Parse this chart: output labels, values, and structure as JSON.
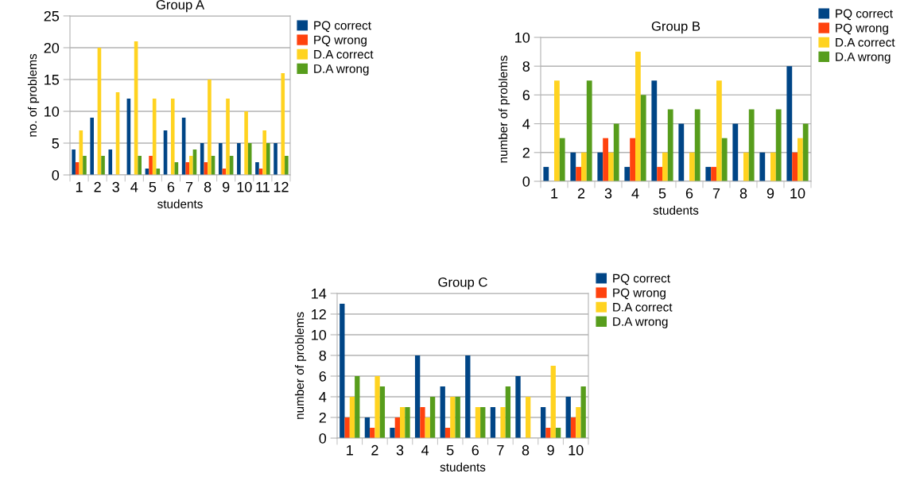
{
  "chart_data": [
    {
      "type": "bar",
      "title": "Group A",
      "xlabel": "students",
      "ylabel": "no. of problems",
      "categories": [
        "1",
        "2",
        "3",
        "4",
        "5",
        "6",
        "7",
        "8",
        "9",
        "10",
        "11",
        "12"
      ],
      "ylim": [
        0,
        25
      ],
      "yticks": [
        0,
        5,
        10,
        15,
        20,
        25
      ],
      "grid": "y",
      "legend": "top right",
      "series": [
        {
          "name": "PQ correct",
          "color": "#004586",
          "values": [
            4,
            9,
            4,
            12,
            1,
            7,
            9,
            5,
            5,
            5,
            2,
            5
          ]
        },
        {
          "name": "PQ wrong",
          "color": "#ff420e",
          "values": [
            2,
            0,
            0,
            0,
            3,
            0,
            2,
            2,
            1,
            0,
            1,
            0
          ]
        },
        {
          "name": "D.A correct",
          "color": "#ffd320",
          "values": [
            7,
            20,
            13,
            21,
            12,
            12,
            3,
            15,
            12,
            10,
            7,
            16
          ]
        },
        {
          "name": "D.A wrong",
          "color": "#579d1c",
          "values": [
            3,
            3,
            0,
            3,
            1,
            2,
            4,
            3,
            3,
            5,
            5,
            3
          ]
        }
      ]
    },
    {
      "type": "bar",
      "title": "Group B",
      "xlabel": "students",
      "ylabel": "number of problems",
      "categories": [
        "1",
        "2",
        "3",
        "4",
        "5",
        "6",
        "7",
        "8",
        "9",
        "10"
      ],
      "ylim": [
        0,
        10
      ],
      "yticks": [
        0,
        2,
        4,
        6,
        8,
        10
      ],
      "grid": "y",
      "legend": "top right",
      "series": [
        {
          "name": "PQ correct",
          "color": "#004586",
          "values": [
            1,
            2,
            2,
            1,
            7,
            4,
            1,
            4,
            2,
            8
          ]
        },
        {
          "name": "PQ wrong",
          "color": "#ff420e",
          "values": [
            0,
            1,
            3,
            3,
            1,
            0,
            1,
            0,
            0,
            2
          ]
        },
        {
          "name": "D.A correct",
          "color": "#ffd320",
          "values": [
            7,
            2,
            2,
            9,
            2,
            2,
            7,
            2,
            2,
            3
          ]
        },
        {
          "name": "D.A wrong",
          "color": "#579d1c",
          "values": [
            3,
            7,
            4,
            6,
            5,
            5,
            3,
            5,
            5,
            4
          ]
        }
      ]
    },
    {
      "type": "bar",
      "title": "Group C",
      "xlabel": "students",
      "ylabel": "number of problems",
      "categories": [
        "1",
        "2",
        "3",
        "4",
        "5",
        "6",
        "7",
        "8",
        "9",
        "10"
      ],
      "ylim": [
        0,
        14
      ],
      "yticks": [
        0,
        2,
        4,
        6,
        8,
        10,
        12,
        14
      ],
      "grid": "y",
      "legend": "top right",
      "series": [
        {
          "name": "PQ correct",
          "color": "#004586",
          "values": [
            13,
            2,
            1,
            8,
            5,
            8,
            3,
            6,
            3,
            4
          ]
        },
        {
          "name": "PQ wrong",
          "color": "#ff420e",
          "values": [
            2,
            1,
            2,
            3,
            1,
            0,
            0,
            0,
            1,
            2
          ]
        },
        {
          "name": "D.A correct",
          "color": "#ffd320",
          "values": [
            4,
            6,
            3,
            2,
            4,
            3,
            3,
            4,
            7,
            3
          ]
        },
        {
          "name": "D.A wrong",
          "color": "#579d1c",
          "values": [
            6,
            5,
            3,
            4,
            4,
            3,
            5,
            0,
            1,
            5
          ]
        }
      ]
    }
  ]
}
